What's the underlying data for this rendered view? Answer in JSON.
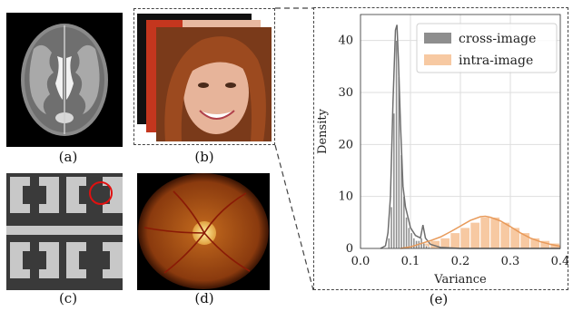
{
  "panels": {
    "a": {
      "label": "(a)"
    },
    "b": {
      "label": "(b)"
    },
    "c": {
      "label": "(c)"
    },
    "d": {
      "label": "(d)"
    },
    "e": {
      "label": "(e)"
    }
  },
  "chart_data": {
    "type": "histogram",
    "xlabel": "Variance",
    "ylabel": "Density",
    "xlim": [
      0.0,
      0.4
    ],
    "ylim": [
      0,
      45
    ],
    "xticks": [
      "0.0",
      "0.1",
      "0.2",
      "0.3",
      "0.4"
    ],
    "yticks": [
      "0",
      "10",
      "20",
      "30",
      "40"
    ],
    "grid": true,
    "legend_position": "top-right",
    "series": [
      {
        "name": "cross-image",
        "color": "#7a7a7a",
        "bin_edges": [
          0.055,
          0.06,
          0.065,
          0.07,
          0.075,
          0.08,
          0.085,
          0.09,
          0.095,
          0.1,
          0.105,
          0.11,
          0.115,
          0.12,
          0.125,
          0.13,
          0.135,
          0.14
        ],
        "densities": [
          2,
          8,
          26,
          40,
          33,
          18,
          10,
          6,
          4,
          3,
          2,
          1.5,
          1.5,
          2,
          1,
          0.5,
          0.3
        ],
        "kde_x": [
          0.04,
          0.05,
          0.055,
          0.06,
          0.065,
          0.07,
          0.073,
          0.076,
          0.08,
          0.085,
          0.09,
          0.095,
          0.1,
          0.11,
          0.12,
          0.125,
          0.13,
          0.14,
          0.16,
          0.2,
          0.3,
          0.4
        ],
        "kde_y": [
          0,
          0.5,
          3,
          10,
          28,
          42,
          43,
          36,
          24,
          12,
          8,
          6,
          4,
          2.5,
          2,
          4.5,
          2,
          0.8,
          0.2,
          0,
          0,
          0
        ]
      },
      {
        "name": "intra-image",
        "color": "#f4b27a",
        "bin_edges": [
          0.1,
          0.12,
          0.14,
          0.16,
          0.18,
          0.2,
          0.22,
          0.24,
          0.26,
          0.28,
          0.3,
          0.32,
          0.34,
          0.36,
          0.38,
          0.4
        ],
        "densities": [
          0.5,
          1,
          1.5,
          2,
          3,
          4,
          5,
          6,
          6,
          5,
          4,
          3,
          2,
          1.5,
          1
        ],
        "kde_x": [
          0.08,
          0.1,
          0.12,
          0.14,
          0.16,
          0.18,
          0.2,
          0.22,
          0.24,
          0.25,
          0.26,
          0.28,
          0.3,
          0.32,
          0.34,
          0.36,
          0.38,
          0.4
        ],
        "kde_y": [
          0,
          0.3,
          0.9,
          1.5,
          2.2,
          3.2,
          4.3,
          5.4,
          6.1,
          6.2,
          6.0,
          5.3,
          4.2,
          3.0,
          2.0,
          1.3,
          0.8,
          0.4
        ]
      }
    ]
  }
}
